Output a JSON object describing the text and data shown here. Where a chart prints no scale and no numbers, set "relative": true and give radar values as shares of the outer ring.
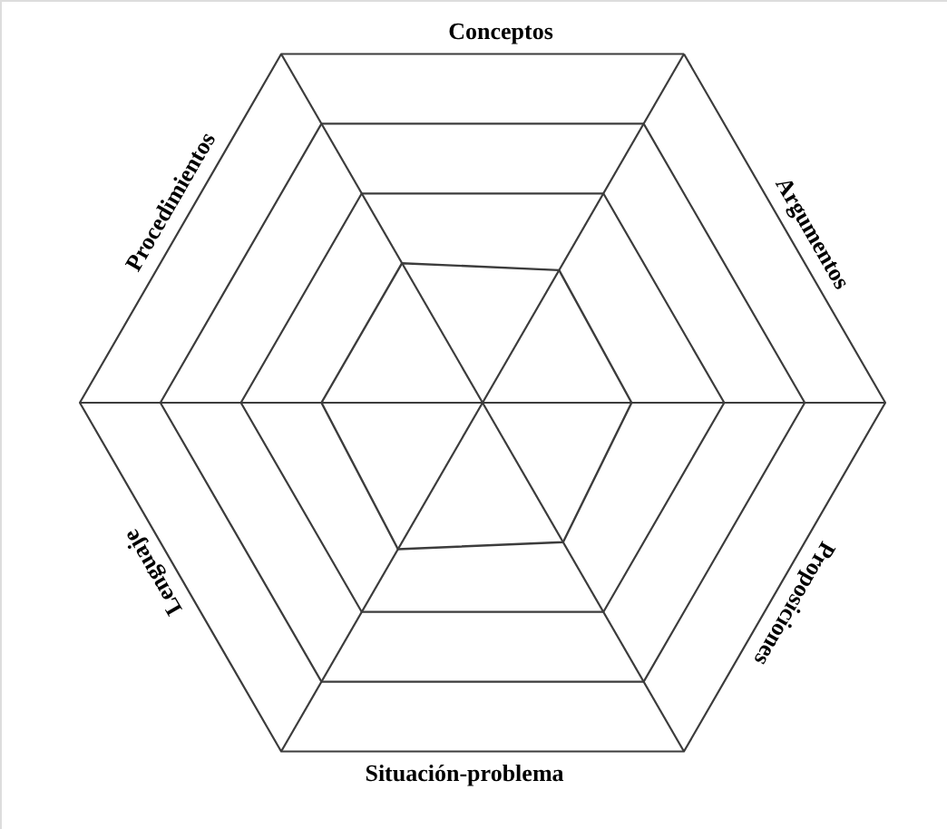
{
  "chart_data": {
    "type": "radar",
    "categories": [
      "Conceptos",
      "Argumentos",
      "Proposiciones",
      "Situación-problema",
      "Lenguaje",
      "Procedimientos"
    ],
    "series": [
      {
        "color": "#3c3c3c",
        "values": [
          0.38,
          0.37,
          0.4,
          0.42,
          0.4,
          0.4
        ]
      }
    ],
    "relative": true,
    "grid": true
  }
}
